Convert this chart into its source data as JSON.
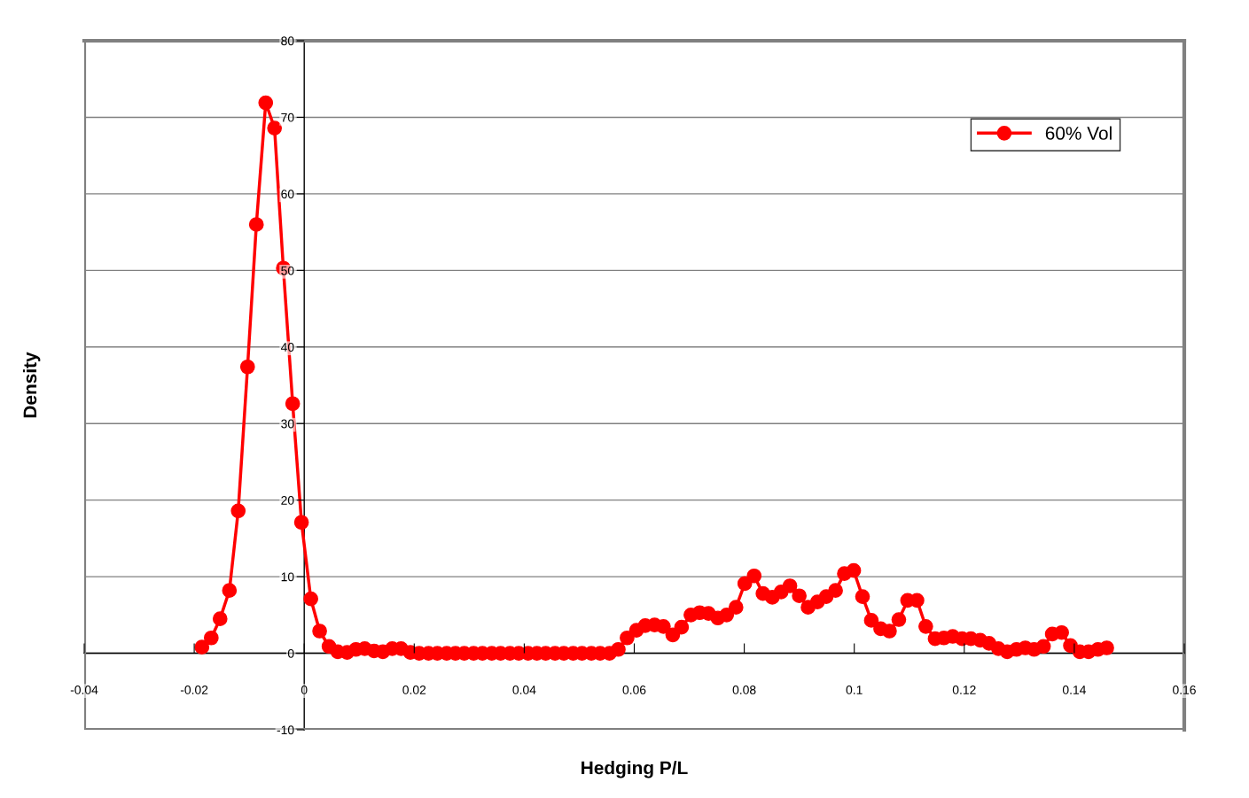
{
  "chart_data": {
    "type": "line",
    "xlabel": "Hedging P/L",
    "ylabel": "Density",
    "xlim": [
      -0.04,
      0.16
    ],
    "xticks": [
      -0.04,
      -0.02,
      0,
      0.02,
      0.04,
      0.06,
      0.08,
      0.1,
      0.12,
      0.14,
      0.16
    ],
    "ylim": [
      -10,
      80
    ],
    "yticks": [
      -10,
      0,
      10,
      20,
      30,
      40,
      50,
      60,
      70,
      80
    ],
    "grid": "y",
    "legend": "top right",
    "marker": "circle",
    "line_style": "solid",
    "series": [
      {
        "name": "60% Vol",
        "color": "#ff0000",
        "x": [
          -0.0186,
          -0.0169,
          -0.0153,
          -0.0136,
          -0.012,
          -0.0103,
          -0.0087,
          -0.007,
          -0.0054,
          -0.0038,
          -0.0021,
          -0.0005,
          0.0012,
          0.0028,
          0.0045,
          0.0061,
          0.0078,
          0.0094,
          0.011,
          0.0127,
          0.0143,
          0.016,
          0.0176,
          0.0193,
          0.0209,
          0.0226,
          0.0242,
          0.0259,
          0.0275,
          0.0291,
          0.0308,
          0.0324,
          0.0341,
          0.0357,
          0.0374,
          0.039,
          0.0407,
          0.0423,
          0.0439,
          0.0456,
          0.0472,
          0.0489,
          0.0505,
          0.0522,
          0.0538,
          0.0555,
          0.0571,
          0.0587,
          0.0604,
          0.062,
          0.0637,
          0.0653,
          0.067,
          0.0686,
          0.0703,
          0.0719,
          0.0735,
          0.0752,
          0.0768,
          0.0785,
          0.0801,
          0.0818,
          0.0834,
          0.0851,
          0.0867,
          0.0883,
          0.09,
          0.0916,
          0.0933,
          0.0949,
          0.0966,
          0.0982,
          0.0999,
          0.1015,
          0.1031,
          0.1048,
          0.1064,
          0.1081,
          0.1097,
          0.1114,
          0.113,
          0.1147,
          0.1163,
          0.1179,
          0.1196,
          0.1212,
          0.1229,
          0.1245,
          0.1262,
          0.1278,
          0.1295,
          0.1311,
          0.1327,
          0.1344,
          0.136,
          0.1377,
          0.1393,
          0.141,
          0.1426,
          0.1443,
          0.1459
        ],
        "values": [
          0.8,
          2.0,
          4.5,
          8.2,
          18.6,
          37.4,
          56.0,
          71.9,
          68.6,
          50.3,
          32.6,
          17.1,
          7.1,
          2.9,
          0.9,
          0.2,
          0.1,
          0.5,
          0.6,
          0.3,
          0.2,
          0.6,
          0.6,
          0.1,
          0,
          0,
          0,
          0,
          0,
          0,
          0,
          0,
          0,
          0,
          0,
          0,
          0,
          0,
          0,
          0,
          0,
          0,
          0,
          0,
          0,
          0,
          0.5,
          2.0,
          3.0,
          3.6,
          3.7,
          3.5,
          2.4,
          3.4,
          5.0,
          5.3,
          5.2,
          4.6,
          5.0,
          6.0,
          9.1,
          10.1,
          7.8,
          7.3,
          8.0,
          8.8,
          7.5,
          6.0,
          6.7,
          7.4,
          8.2,
          10.4,
          10.8,
          7.4,
          4.3,
          3.2,
          2.9,
          4.4,
          6.9,
          6.9,
          3.5,
          1.9,
          2.0,
          2.2,
          1.9,
          1.9,
          1.7,
          1.3,
          0.6,
          0.2,
          0.5,
          0.7,
          0.5,
          0.9,
          2.5,
          2.7,
          1.0,
          0.2,
          0.2,
          0.5,
          0.7
        ]
      }
    ]
  }
}
